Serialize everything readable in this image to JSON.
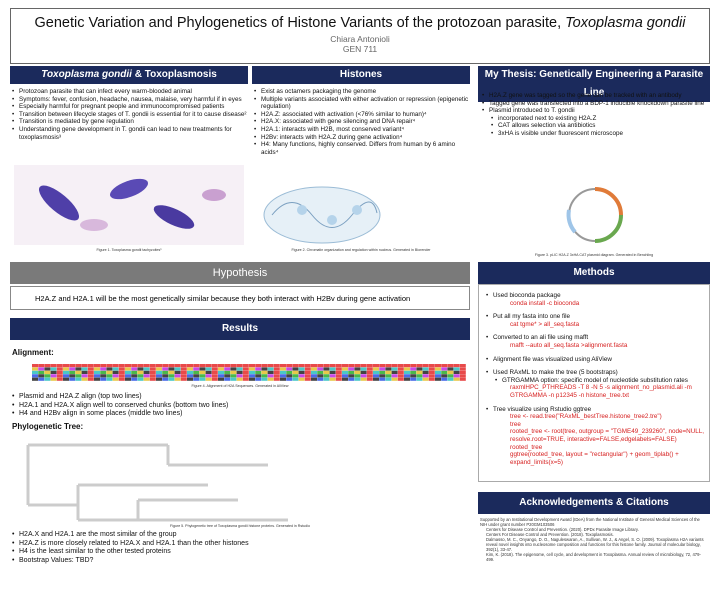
{
  "header": {
    "title": "Genetic Variation and Phylogenetics of Histone Variants of the protozoan parasite,",
    "title_italic": "Toxoplasma gondii",
    "author": "Chiara Antonioli",
    "course": "GEN 711"
  },
  "intro": {
    "heading_italic": "Toxoplasma gondii",
    "heading": "& Toxoplasmosis",
    "bullets": [
      "Protozoan parasite that can infect every warm-blooded animal",
      "Symptoms: fever, confusion, headache, nausea, malaise, very harmful if in eyes",
      "Especially harmful for pregnant people and immunocompromised patients",
      "Transition between lifecycle stages of T. gondii is essential for it to cause disease²",
      "Transition is mediated by gene regulation",
      "Understanding gene development in T. gondii can lead to new treatments for toxoplasmosis³"
    ],
    "caption": "Figure 1. Toxoplasma gondii tachyzoites¹"
  },
  "histones": {
    "heading": "Histones",
    "bullets": [
      "Exist as octamers packaging the genome",
      "Multiple variants associated with either activation or repression (epigenetic regulation)",
      "H2A.Z: associated with activation (<76% similar to human)⁴",
      "H2A.X: associated with gene silencing and DNA repair⁴",
      "H2A.1: interacts with H2B, most conserved variant⁴",
      "H2Bv: interacts with H2A.Z during gene activation⁴",
      "H4: Many functions, highly conserved. Differs from human by 6 amino acids⁴"
    ],
    "caption": "Figure 2. Chromatin organization and regulation within nucleus. Generated in Biorender"
  },
  "thesis": {
    "heading": "My Thesis: Genetically Engineering a Parasite Line",
    "bullets": [
      "H2A.Z gene was tagged so the gene can be tracked with an antibody",
      "Tagged gene was transfected into a BDP-1 inducible knockdown parasite line",
      {
        "text": "Plasmid introduced to T. gondii",
        "sub": [
          "incorporated next to existing H2A.Z",
          "CAT allows selection via antibiotics",
          "3xHA is visible under fluorescent microscope"
        ]
      }
    ],
    "caption": "Figure 3. pLIC H2A.Z 3xHA CAT plasmid diagram. Generated in Benchling"
  },
  "hypothesis": {
    "heading": "Hypothesis",
    "text": "H2A.Z and H2A.1 will be the most genetically similar because they both interact with H2Bv during gene activation"
  },
  "results": {
    "heading": "Results",
    "alignment_label": "Alignment:",
    "alignment_caption": "Figure 4. Alignment of H2A Sequences. Generated in AliView",
    "alignment_bullets": [
      "Plasmid and H2A.Z align (top two lines)",
      "H2A.1 and H2A.X align well to conserved chunks (bottom two lines)",
      "H4 and H2Bv align in some places (middle two lines)"
    ],
    "tree_label": "Phylogenetic Tree:",
    "tree_caption": "Figure 5. Phylogenetic tree of Toxoplasma gondii histone proteins. Generated in Rstudio",
    "tree_bullets": [
      "H2A.X and H2A.1 are the most similar of the group",
      "H2A.Z is more closely related to H2A.X and H2A.1 than the other histones",
      "H4 is the least similar to the other tested proteins",
      "Bootstrap Values: TBD?"
    ]
  },
  "methods": {
    "heading": "Methods",
    "bullets": [
      {
        "text": "Used bioconda package",
        "code": [
          "conda install -c bioconda"
        ]
      },
      {
        "text": "Put all my fasta into one file",
        "code": [
          "cat tgme* > all_seq.fasta"
        ]
      },
      {
        "text": "Converted to an ali file using mafft",
        "code": [
          "mafft --auto all_seq.fasta >alignment.fasta"
        ]
      },
      {
        "text": "Alignment file was visualized using AliView"
      },
      {
        "text": "Used RAxML to make the tree (5 bootstraps)",
        "sub": [
          "GTRGAMMA option: specific model of nucleotide substitution rates"
        ],
        "code": [
          "raxmlHPC_PTHREADS -T 8 -N 5 -s alignment_no_plasmid.ali -m GTRGAMMA -n p12345 -n histone_tree.txt"
        ]
      },
      {
        "text": "Tree visualize using Rstudio ggtree",
        "code": [
          "tree <- read.tree(\"RAxML_bestTree.histone_tree2.tre\")",
          "tree",
          "rooted_tree <- root(tree, outgroup = \"TGME49_239260\", node=NULL, resolve.root=TRUE, interactive=FALSE,edgelabels=FALSE)",
          "rooted_tree",
          "ggtree(rooted_tree, layout = \"rectangular\") + geom_tiplab() + expand_limits(x=5)"
        ]
      }
    ]
  },
  "acknowledgements": {
    "heading": "Acknowledgements & Citations",
    "support": "Supported by an Institutional Development Award (IDeA) from the National Institute of General Medical Sciences of the NIH under grant number P20GM103506",
    "references": [
      "Centers for Disease Control and Prevention. (2020). DPDx Parasite Image Library.",
      "Centers For Disease Control and Prevention. (2018). Toxoplasmosis.",
      "Dalmasso, M. C., Onyango, D. O., Naguleswaran, A., Sullivan, W. J., & Angel, S. O. (2009). Toxoplasma H2A variants reveal novel insights into nucleosome composition and functions for this histone family. Journal of molecular biology, 392(1), 33-47.",
      "Kim, K. (2018). The epigenome, cell cycle, and development in Toxoplasma. Annual review of microbiology, 72, 479-499."
    ]
  }
}
